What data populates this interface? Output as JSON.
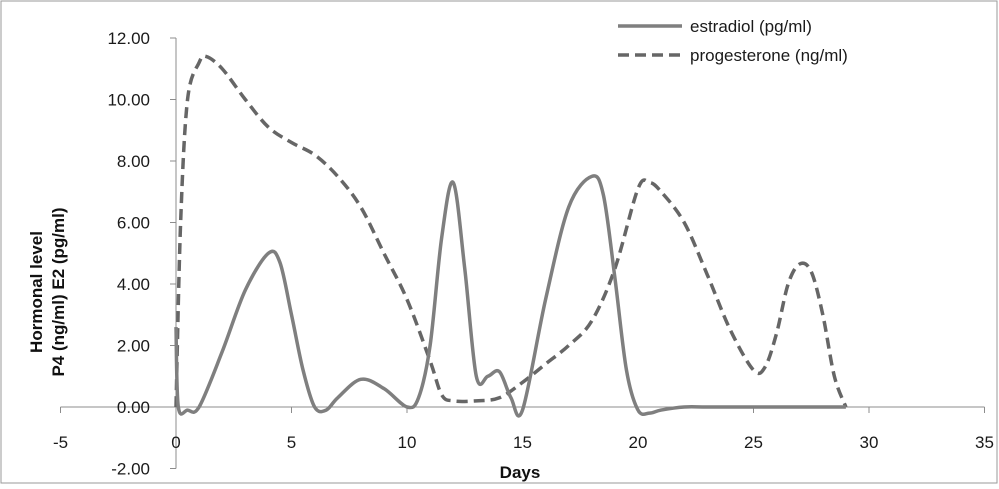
{
  "chart_data": {
    "type": "line",
    "xlabel": "Days",
    "ylabel_lines": [
      "Hormonal level",
      "P4 (ng/ml) E2 (pg/ml)"
    ],
    "xlim": [
      -5,
      35
    ],
    "ylim": [
      -2,
      12
    ],
    "x_ticks": [
      -5,
      0,
      5,
      10,
      15,
      20,
      25,
      30,
      35
    ],
    "y_ticks": [
      "-2.00",
      "0.00",
      "2.00",
      "4.00",
      "6.00",
      "8.00",
      "10.00",
      "12.00"
    ],
    "y_tick_values": [
      -2,
      0,
      2,
      4,
      6,
      8,
      10,
      12
    ],
    "grid": false,
    "legend_position": "top-right",
    "series": [
      {
        "name": "estradiol (pg/ml)",
        "color": "#7f7f7f",
        "line_style": "solid",
        "x": [
          0,
          0.1,
          0.5,
          1,
          2,
          3,
          4,
          4.5,
          5,
          5.5,
          6,
          6.5,
          7,
          8,
          9,
          10,
          10.5,
          11,
          11.5,
          12,
          12.5,
          13,
          13.5,
          14,
          14.5,
          15,
          16,
          17,
          18,
          18.5,
          19,
          19.5,
          20,
          20.5,
          21,
          22,
          23,
          25,
          27,
          29
        ],
        "y": [
          2.6,
          0.0,
          -0.1,
          0.0,
          1.8,
          3.8,
          5.0,
          4.7,
          3.0,
          1.2,
          0.0,
          -0.1,
          0.3,
          0.9,
          0.6,
          0.0,
          0.3,
          2.0,
          5.5,
          7.3,
          4.5,
          1.0,
          1.0,
          1.15,
          0.3,
          -0.1,
          3.5,
          6.5,
          7.5,
          6.9,
          4.2,
          1.2,
          -0.1,
          -0.2,
          -0.1,
          0.0,
          0.0,
          0.0,
          0.0,
          0.0
        ]
      },
      {
        "name": "progesterone (ng/ml)",
        "color": "#666666",
        "line_style": "dashed",
        "x": [
          0,
          0.2,
          0.5,
          1,
          1.3,
          2,
          3,
          4,
          5,
          6,
          7,
          8,
          9,
          10,
          11,
          11.5,
          12,
          13,
          14,
          15,
          16,
          17,
          18,
          19,
          20,
          20.5,
          21,
          22,
          23,
          24,
          25,
          25.5,
          26,
          26.5,
          27,
          27.5,
          28,
          28.5,
          29
        ],
        "y": [
          0.0,
          6.0,
          10.0,
          11.2,
          11.4,
          11.0,
          10.0,
          9.1,
          8.6,
          8.2,
          7.5,
          6.5,
          5.0,
          3.5,
          1.5,
          0.4,
          0.2,
          0.2,
          0.3,
          0.8,
          1.4,
          2.0,
          2.8,
          4.5,
          7.1,
          7.3,
          7.0,
          6.0,
          4.3,
          2.5,
          1.2,
          1.3,
          2.4,
          4.0,
          4.65,
          4.4,
          3.0,
          1.0,
          0.0
        ]
      }
    ]
  }
}
